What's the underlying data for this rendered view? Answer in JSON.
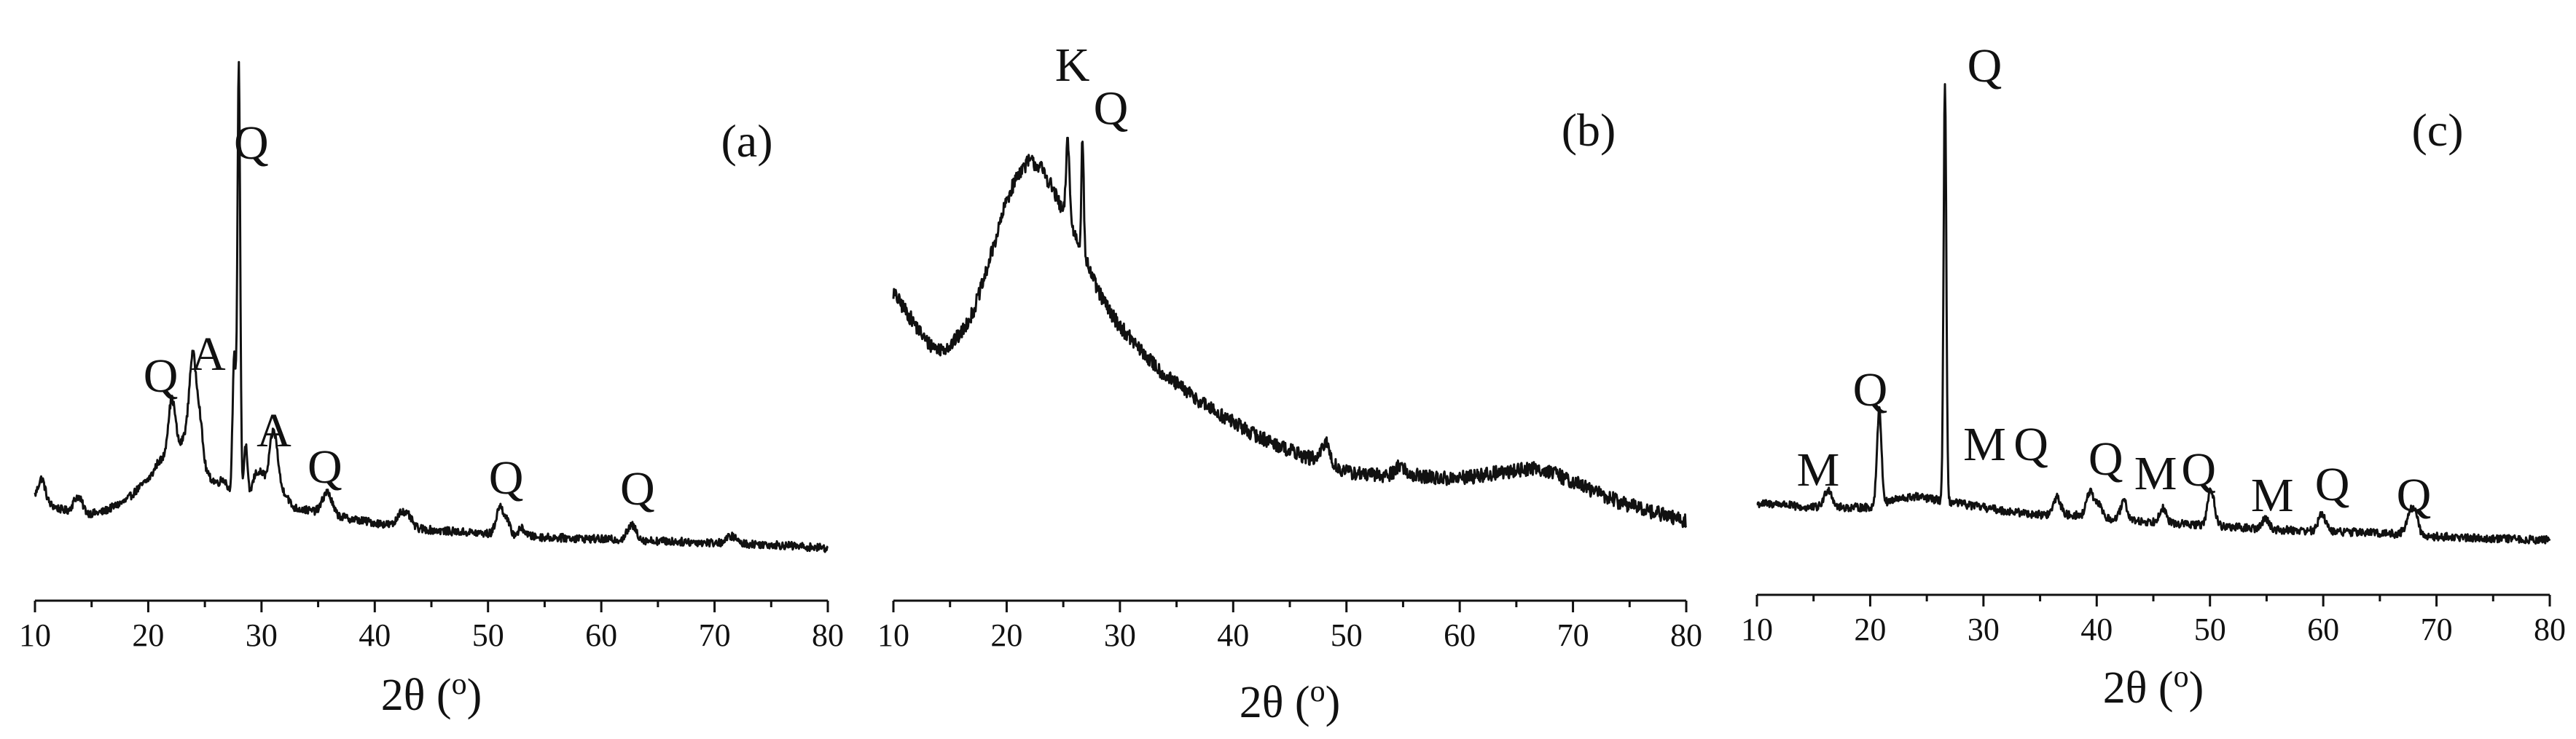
{
  "chart_data": [
    {
      "type": "line",
      "panel_label": "(a)",
      "xlabel": "2θ (o)",
      "xlim": [
        10,
        80
      ],
      "xticks": [
        10,
        20,
        30,
        40,
        50,
        60,
        70,
        80
      ],
      "y_ticks_shown": false,
      "baseline": [
        [
          10,
          15
        ],
        [
          12,
          12
        ],
        [
          14,
          10
        ],
        [
          16,
          11
        ],
        [
          18,
          14
        ],
        [
          20,
          20
        ],
        [
          22,
          26
        ],
        [
          24,
          24
        ],
        [
          26,
          19
        ],
        [
          27,
          16
        ],
        [
          29,
          15
        ],
        [
          31,
          14
        ],
        [
          33,
          12
        ],
        [
          35,
          11
        ],
        [
          38,
          9
        ],
        [
          40,
          8
        ],
        [
          45,
          6
        ],
        [
          50,
          5
        ],
        [
          55,
          4
        ],
        [
          60,
          3.5
        ],
        [
          65,
          3
        ],
        [
          70,
          2.5
        ],
        [
          75,
          2
        ],
        [
          80,
          1
        ]
      ],
      "peaks": [
        [
          10.6,
          6,
          0.3
        ],
        [
          13.8,
          5,
          0.4
        ],
        [
          20.9,
          2,
          0.3
        ],
        [
          22.1,
          16,
          0.35
        ],
        [
          23.2,
          6,
          0.3
        ],
        [
          23.9,
          28,
          0.3
        ],
        [
          24.5,
          14,
          0.3
        ],
        [
          26.7,
          3,
          0.3
        ],
        [
          27.6,
          38,
          0.15
        ],
        [
          28.0,
          118,
          0.12
        ],
        [
          28.6,
          14,
          0.15
        ],
        [
          29.5,
          6,
          0.3
        ],
        [
          30.1,
          6,
          0.3
        ],
        [
          30.9,
          13,
          0.3
        ],
        [
          31.3,
          11,
          0.3
        ],
        [
          32.1,
          3,
          0.3
        ],
        [
          35.8,
          6,
          0.4
        ],
        [
          42.3,
          4,
          0.3
        ],
        [
          43.0,
          3,
          0.3
        ],
        [
          51.0,
          7,
          0.3
        ],
        [
          51.6,
          4,
          0.3
        ],
        [
          53.0,
          2,
          0.3
        ],
        [
          62.7,
          4,
          0.4
        ],
        [
          71.5,
          2,
          0.4
        ]
      ],
      "annotations": [
        {
          "text": "Q",
          "x": 29.1,
          "y": 108
        },
        {
          "text": "Q",
          "x": 21.1,
          "y": 44
        },
        {
          "text": "A",
          "x": 25.3,
          "y": 50
        },
        {
          "text": "A",
          "x": 31.1,
          "y": 29
        },
        {
          "text": "Q",
          "x": 35.6,
          "y": 19
        },
        {
          "text": "Q",
          "x": 51.6,
          "y": 16
        },
        {
          "text": "Q",
          "x": 63.2,
          "y": 13
        }
      ]
    },
    {
      "type": "line",
      "panel_label": "(b)",
      "xlabel": "2θ (o)",
      "xlim": [
        10,
        80
      ],
      "xticks": [
        10,
        20,
        30,
        40,
        50,
        60,
        70,
        80
      ],
      "y_ticks_shown": false,
      "baseline": [
        [
          10,
          72
        ],
        [
          11,
          67
        ],
        [
          12,
          62
        ],
        [
          13,
          57
        ],
        [
          14,
          55
        ],
        [
          15,
          56
        ],
        [
          16,
          60
        ],
        [
          17,
          66
        ],
        [
          18,
          76
        ],
        [
          19,
          88
        ],
        [
          20,
          100
        ],
        [
          21,
          108
        ],
        [
          22,
          112
        ],
        [
          23,
          110
        ],
        [
          24,
          104
        ],
        [
          25,
          96
        ],
        [
          26,
          90
        ],
        [
          27,
          82
        ],
        [
          28,
          73
        ],
        [
          29,
          67
        ],
        [
          30,
          62
        ],
        [
          32,
          54
        ],
        [
          34,
          47
        ],
        [
          36,
          42
        ],
        [
          38,
          37
        ],
        [
          40,
          33
        ],
        [
          42,
          29
        ],
        [
          44,
          26
        ],
        [
          46,
          23
        ],
        [
          48,
          21
        ],
        [
          50,
          18
        ],
        [
          52,
          17
        ],
        [
          54,
          17
        ],
        [
          56,
          17
        ],
        [
          58,
          16
        ],
        [
          60,
          16
        ],
        [
          62,
          17
        ],
        [
          64,
          18
        ],
        [
          66,
          19
        ],
        [
          67,
          19
        ],
        [
          68,
          18
        ],
        [
          70,
          15
        ],
        [
          72,
          12
        ],
        [
          74,
          9
        ],
        [
          76,
          7
        ],
        [
          78,
          5
        ],
        [
          80,
          3
        ]
      ],
      "peaks": [
        [
          25.4,
          25,
          0.15
        ],
        [
          26.7,
          35,
          0.1
        ],
        [
          48.2,
          6,
          0.35
        ],
        [
          54.7,
          3,
          0.4
        ]
      ],
      "annotations": [
        {
          "text": "K",
          "x": 25.8,
          "y": 136
        },
        {
          "text": "Q",
          "x": 29.2,
          "y": 123
        }
      ]
    },
    {
      "type": "line",
      "panel_label": "(c)",
      "xlabel": "2θ (o)",
      "xlim": [
        10,
        80
      ],
      "xticks": [
        10,
        20,
        30,
        40,
        50,
        60,
        70,
        80
      ],
      "y_ticks_shown": false,
      "baseline": [
        [
          10,
          12
        ],
        [
          12,
          12
        ],
        [
          14,
          11
        ],
        [
          16,
          11
        ],
        [
          18,
          11
        ],
        [
          20,
          11
        ],
        [
          22,
          13
        ],
        [
          24,
          14
        ],
        [
          26,
          13
        ],
        [
          28,
          12
        ],
        [
          30,
          11
        ],
        [
          32,
          10
        ],
        [
          35,
          9
        ],
        [
          38,
          9
        ],
        [
          40,
          8
        ],
        [
          45,
          7
        ],
        [
          50,
          6
        ],
        [
          55,
          5
        ],
        [
          60,
          4.5
        ],
        [
          65,
          4
        ],
        [
          70,
          3
        ],
        [
          75,
          2.5
        ],
        [
          80,
          2
        ]
      ],
      "peaks": [
        [
          16.3,
          5,
          0.35
        ],
        [
          20.8,
          26,
          0.2
        ],
        [
          26.6,
          115,
          0.12
        ],
        [
          36.5,
          5,
          0.3
        ],
        [
          39.4,
          7,
          0.3
        ],
        [
          40.2,
          4,
          0.3
        ],
        [
          42.4,
          5,
          0.3
        ],
        [
          45.8,
          4,
          0.3
        ],
        [
          50.1,
          10,
          0.3
        ],
        [
          54.9,
          3,
          0.3
        ],
        [
          59.9,
          5,
          0.3
        ],
        [
          67.7,
          5,
          0.4
        ],
        [
          68.1,
          4,
          0.3
        ]
      ],
      "annotations": [
        {
          "text": "M",
          "x": 15.4,
          "y": 17
        },
        {
          "text": "Q",
          "x": 20.0,
          "y": 39
        },
        {
          "text": "Q",
          "x": 30.1,
          "y": 128
        },
        {
          "text": "M",
          "x": 30.1,
          "y": 24
        },
        {
          "text": "Q",
          "x": 34.2,
          "y": 24
        },
        {
          "text": "Q",
          "x": 40.8,
          "y": 20
        },
        {
          "text": "M",
          "x": 45.2,
          "y": 16
        },
        {
          "text": "Q",
          "x": 49.0,
          "y": 17
        },
        {
          "text": "M",
          "x": 55.5,
          "y": 10
        },
        {
          "text": "Q",
          "x": 60.8,
          "y": 13
        },
        {
          "text": "Q",
          "x": 68.0,
          "y": 10
        }
      ]
    }
  ]
}
